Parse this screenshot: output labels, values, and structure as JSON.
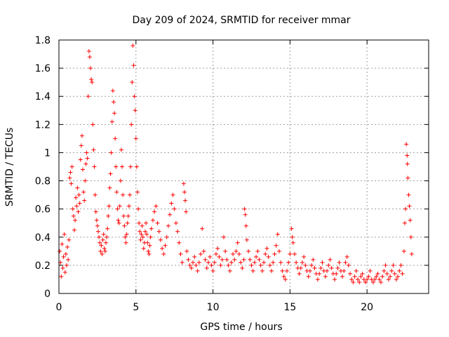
{
  "chart_data": {
    "type": "scatter",
    "title": "Day 209 of 2024, SRMTID for receiver mmar",
    "xlabel": "GPS time / hours",
    "ylabel": "SRMTID / TECUs",
    "xlim": [
      0,
      24
    ],
    "ylim": [
      0,
      1.8
    ],
    "xticks": [
      0,
      5,
      10,
      15,
      20
    ],
    "xtick_labels": [
      "0",
      "5",
      "10",
      "15",
      "20"
    ],
    "yticks": [
      0,
      0.2,
      0.4,
      0.6,
      0.8,
      1,
      1.2,
      1.4,
      1.6,
      1.8
    ],
    "ytick_labels": [
      "0",
      "0.2",
      "0.4",
      "0.6",
      "0.8",
      "1",
      "1.2",
      "1.4",
      "1.6",
      "1.8"
    ],
    "grid": true,
    "marker": "+",
    "color": "#ff0000",
    "series": [
      {
        "name": "SRMTID",
        "points": [
          [
            0.05,
            0.3
          ],
          [
            0.1,
            0.22
          ],
          [
            0.15,
            0.12
          ],
          [
            0.2,
            0.35
          ],
          [
            0.25,
            0.18
          ],
          [
            0.3,
            0.26
          ],
          [
            0.35,
            0.42
          ],
          [
            0.4,
            0.15
          ],
          [
            0.45,
            0.28
          ],
          [
            0.5,
            0.2
          ],
          [
            0.55,
            0.33
          ],
          [
            0.6,
            0.24
          ],
          [
            0.65,
            0.38
          ],
          [
            0.7,
            0.82
          ],
          [
            0.75,
            0.86
          ],
          [
            0.8,
            0.78
          ],
          [
            0.85,
            0.9
          ],
          [
            0.9,
            0.6
          ],
          [
            0.95,
            0.55
          ],
          [
            1.0,
            0.45
          ],
          [
            1.05,
            0.52
          ],
          [
            1.1,
            0.68
          ],
          [
            1.15,
            0.62
          ],
          [
            1.2,
            0.75
          ],
          [
            1.25,
            0.58
          ],
          [
            1.3,
            0.7
          ],
          [
            1.35,
            0.64
          ],
          [
            1.4,
            0.95
          ],
          [
            1.45,
            1.05
          ],
          [
            1.5,
            1.12
          ],
          [
            1.55,
            0.88
          ],
          [
            1.6,
            0.72
          ],
          [
            1.65,
            0.66
          ],
          [
            1.7,
            0.8
          ],
          [
            1.75,
            0.92
          ],
          [
            1.8,
            1.0
          ],
          [
            1.85,
            0.96
          ],
          [
            1.9,
            1.4
          ],
          [
            1.95,
            1.72
          ],
          [
            2.0,
            1.68
          ],
          [
            2.05,
            1.6
          ],
          [
            2.1,
            1.52
          ],
          [
            2.15,
            1.5
          ],
          [
            2.2,
            1.2
          ],
          [
            2.25,
            1.02
          ],
          [
            2.3,
            0.9
          ],
          [
            2.35,
            0.7
          ],
          [
            2.4,
            0.58
          ],
          [
            2.45,
            0.52
          ],
          [
            2.5,
            0.48
          ],
          [
            2.55,
            0.44
          ],
          [
            2.6,
            0.4
          ],
          [
            2.65,
            0.36
          ],
          [
            2.7,
            0.3
          ],
          [
            2.75,
            0.34
          ],
          [
            2.8,
            0.28
          ],
          [
            2.85,
            0.38
          ],
          [
            2.9,
            0.42
          ],
          [
            2.95,
            0.32
          ],
          [
            3.0,
            0.3
          ],
          [
            3.05,
            0.36
          ],
          [
            3.1,
            0.4
          ],
          [
            3.15,
            0.46
          ],
          [
            3.2,
            0.55
          ],
          [
            3.25,
            0.62
          ],
          [
            3.3,
            0.75
          ],
          [
            3.35,
            0.85
          ],
          [
            3.4,
            1.0
          ],
          [
            3.45,
            1.22
          ],
          [
            3.5,
            1.44
          ],
          [
            3.55,
            1.36
          ],
          [
            3.6,
            1.28
          ],
          [
            3.65,
            1.1
          ],
          [
            3.7,
            0.9
          ],
          [
            3.75,
            0.72
          ],
          [
            3.8,
            0.6
          ],
          [
            3.85,
            0.52
          ],
          [
            3.9,
            0.5
          ],
          [
            3.95,
            0.62
          ],
          [
            4.0,
            0.8
          ],
          [
            4.05,
            1.02
          ],
          [
            4.1,
            0.9
          ],
          [
            4.15,
            0.7
          ],
          [
            4.2,
            0.55
          ],
          [
            4.25,
            0.48
          ],
          [
            4.3,
            0.4
          ],
          [
            4.35,
            0.36
          ],
          [
            4.4,
            0.42
          ],
          [
            4.45,
            0.5
          ],
          [
            4.5,
            0.55
          ],
          [
            4.55,
            0.62
          ],
          [
            4.6,
            0.7
          ],
          [
            4.65,
            0.9
          ],
          [
            4.7,
            1.2
          ],
          [
            4.75,
            1.5
          ],
          [
            4.8,
            1.76
          ],
          [
            4.85,
            1.62
          ],
          [
            4.9,
            1.4
          ],
          [
            4.95,
            1.3
          ],
          [
            5.0,
            1.1
          ],
          [
            5.05,
            0.9
          ],
          [
            5.1,
            0.72
          ],
          [
            5.15,
            0.6
          ],
          [
            5.2,
            0.5
          ],
          [
            5.25,
            0.44
          ],
          [
            5.3,
            0.38
          ],
          [
            5.35,
            0.42
          ],
          [
            5.4,
            0.48
          ],
          [
            5.45,
            0.4
          ],
          [
            5.5,
            0.32
          ],
          [
            5.55,
            0.36
          ],
          [
            5.6,
            0.44
          ],
          [
            5.65,
            0.5
          ],
          [
            5.7,
            0.42
          ],
          [
            5.75,
            0.36
          ],
          [
            5.8,
            0.3
          ],
          [
            5.85,
            0.28
          ],
          [
            5.9,
            0.34
          ],
          [
            5.95,
            0.4
          ],
          [
            6.0,
            0.46
          ],
          [
            6.1,
            0.52
          ],
          [
            6.2,
            0.58
          ],
          [
            6.3,
            0.62
          ],
          [
            6.4,
            0.5
          ],
          [
            6.5,
            0.44
          ],
          [
            6.6,
            0.38
          ],
          [
            6.7,
            0.32
          ],
          [
            6.8,
            0.28
          ],
          [
            6.9,
            0.34
          ],
          [
            7.0,
            0.4
          ],
          [
            7.1,
            0.48
          ],
          [
            7.2,
            0.56
          ],
          [
            7.3,
            0.64
          ],
          [
            7.4,
            0.7
          ],
          [
            7.5,
            0.6
          ],
          [
            7.6,
            0.5
          ],
          [
            7.7,
            0.44
          ],
          [
            7.8,
            0.36
          ],
          [
            7.9,
            0.28
          ],
          [
            8.0,
            0.22
          ],
          [
            8.1,
            0.78
          ],
          [
            8.15,
            0.72
          ],
          [
            8.2,
            0.66
          ],
          [
            8.25,
            0.58
          ],
          [
            8.3,
            0.3
          ],
          [
            8.4,
            0.24
          ],
          [
            8.5,
            0.2
          ],
          [
            8.6,
            0.18
          ],
          [
            8.7,
            0.22
          ],
          [
            8.8,
            0.26
          ],
          [
            8.9,
            0.2
          ],
          [
            9.0,
            0.16
          ],
          [
            9.1,
            0.22
          ],
          [
            9.2,
            0.28
          ],
          [
            9.3,
            0.46
          ],
          [
            9.4,
            0.3
          ],
          [
            9.5,
            0.24
          ],
          [
            9.6,
            0.18
          ],
          [
            9.7,
            0.22
          ],
          [
            9.8,
            0.26
          ],
          [
            9.9,
            0.2
          ],
          [
            10.0,
            0.16
          ],
          [
            10.1,
            0.22
          ],
          [
            10.2,
            0.28
          ],
          [
            10.3,
            0.32
          ],
          [
            10.4,
            0.26
          ],
          [
            10.5,
            0.2
          ],
          [
            10.6,
            0.24
          ],
          [
            10.7,
            0.4
          ],
          [
            10.8,
            0.3
          ],
          [
            10.9,
            0.24
          ],
          [
            11.0,
            0.2
          ],
          [
            11.1,
            0.16
          ],
          [
            11.2,
            0.22
          ],
          [
            11.3,
            0.28
          ],
          [
            11.4,
            0.24
          ],
          [
            11.5,
            0.3
          ],
          [
            11.6,
            0.36
          ],
          [
            11.7,
            0.28
          ],
          [
            11.8,
            0.22
          ],
          [
            11.9,
            0.18
          ],
          [
            12.0,
            0.24
          ],
          [
            12.05,
            0.6
          ],
          [
            12.1,
            0.56
          ],
          [
            12.15,
            0.48
          ],
          [
            12.2,
            0.38
          ],
          [
            12.3,
            0.3
          ],
          [
            12.4,
            0.24
          ],
          [
            12.5,
            0.2
          ],
          [
            12.6,
            0.16
          ],
          [
            12.7,
            0.22
          ],
          [
            12.8,
            0.26
          ],
          [
            12.9,
            0.3
          ],
          [
            13.0,
            0.24
          ],
          [
            13.1,
            0.2
          ],
          [
            13.2,
            0.16
          ],
          [
            13.3,
            0.22
          ],
          [
            13.4,
            0.28
          ],
          [
            13.5,
            0.32
          ],
          [
            13.6,
            0.26
          ],
          [
            13.7,
            0.2
          ],
          [
            13.8,
            0.16
          ],
          [
            13.9,
            0.22
          ],
          [
            14.0,
            0.28
          ],
          [
            14.1,
            0.34
          ],
          [
            14.2,
            0.42
          ],
          [
            14.3,
            0.3
          ],
          [
            14.4,
            0.22
          ],
          [
            14.5,
            0.16
          ],
          [
            14.6,
            0.12
          ],
          [
            14.7,
            0.1
          ],
          [
            14.8,
            0.16
          ],
          [
            14.9,
            0.22
          ],
          [
            15.0,
            0.28
          ],
          [
            15.1,
            0.46
          ],
          [
            15.15,
            0.4
          ],
          [
            15.2,
            0.36
          ],
          [
            15.3,
            0.28
          ],
          [
            15.4,
            0.22
          ],
          [
            15.5,
            0.18
          ],
          [
            15.6,
            0.14
          ],
          [
            15.7,
            0.18
          ],
          [
            15.8,
            0.22
          ],
          [
            15.9,
            0.26
          ],
          [
            16.0,
            0.2
          ],
          [
            16.1,
            0.16
          ],
          [
            16.2,
            0.12
          ],
          [
            16.3,
            0.16
          ],
          [
            16.4,
            0.2
          ],
          [
            16.5,
            0.24
          ],
          [
            16.6,
            0.18
          ],
          [
            16.7,
            0.14
          ],
          [
            16.8,
            0.1
          ],
          [
            16.9,
            0.14
          ],
          [
            17.0,
            0.18
          ],
          [
            17.1,
            0.22
          ],
          [
            17.2,
            0.16
          ],
          [
            17.3,
            0.12
          ],
          [
            17.4,
            0.16
          ],
          [
            17.5,
            0.2
          ],
          [
            17.6,
            0.24
          ],
          [
            17.7,
            0.18
          ],
          [
            17.8,
            0.14
          ],
          [
            17.9,
            0.1
          ],
          [
            18.0,
            0.14
          ],
          [
            18.1,
            0.18
          ],
          [
            18.2,
            0.22
          ],
          [
            18.3,
            0.16
          ],
          [
            18.4,
            0.12
          ],
          [
            18.5,
            0.16
          ],
          [
            18.6,
            0.22
          ],
          [
            18.7,
            0.26
          ],
          [
            18.8,
            0.2
          ],
          [
            18.9,
            0.14
          ],
          [
            19.0,
            0.1
          ],
          [
            19.1,
            0.08
          ],
          [
            19.2,
            0.12
          ],
          [
            19.3,
            0.16
          ],
          [
            19.4,
            0.1
          ],
          [
            19.5,
            0.08
          ],
          [
            19.6,
            0.12
          ],
          [
            19.7,
            0.14
          ],
          [
            19.8,
            0.1
          ],
          [
            19.9,
            0.08
          ],
          [
            20.0,
            0.1
          ],
          [
            20.1,
            0.12
          ],
          [
            20.2,
            0.16
          ],
          [
            20.3,
            0.1
          ],
          [
            20.4,
            0.08
          ],
          [
            20.5,
            0.1
          ],
          [
            20.6,
            0.12
          ],
          [
            20.7,
            0.14
          ],
          [
            20.8,
            0.1
          ],
          [
            20.9,
            0.08
          ],
          [
            21.0,
            0.12
          ],
          [
            21.1,
            0.16
          ],
          [
            21.2,
            0.2
          ],
          [
            21.3,
            0.14
          ],
          [
            21.4,
            0.1
          ],
          [
            21.5,
            0.12
          ],
          [
            21.6,
            0.16
          ],
          [
            21.7,
            0.2
          ],
          [
            21.8,
            0.14
          ],
          [
            21.9,
            0.1
          ],
          [
            22.0,
            0.12
          ],
          [
            22.1,
            0.16
          ],
          [
            22.2,
            0.2
          ],
          [
            22.3,
            0.14
          ],
          [
            22.4,
            0.3
          ],
          [
            22.45,
            0.5
          ],
          [
            22.5,
            0.6
          ],
          [
            22.55,
            1.06
          ],
          [
            22.6,
            0.98
          ],
          [
            22.62,
            0.92
          ],
          [
            22.65,
            0.82
          ],
          [
            22.7,
            0.7
          ],
          [
            22.75,
            0.62
          ],
          [
            22.8,
            0.52
          ],
          [
            22.85,
            0.4
          ],
          [
            22.9,
            0.28
          ]
        ]
      }
    ]
  }
}
